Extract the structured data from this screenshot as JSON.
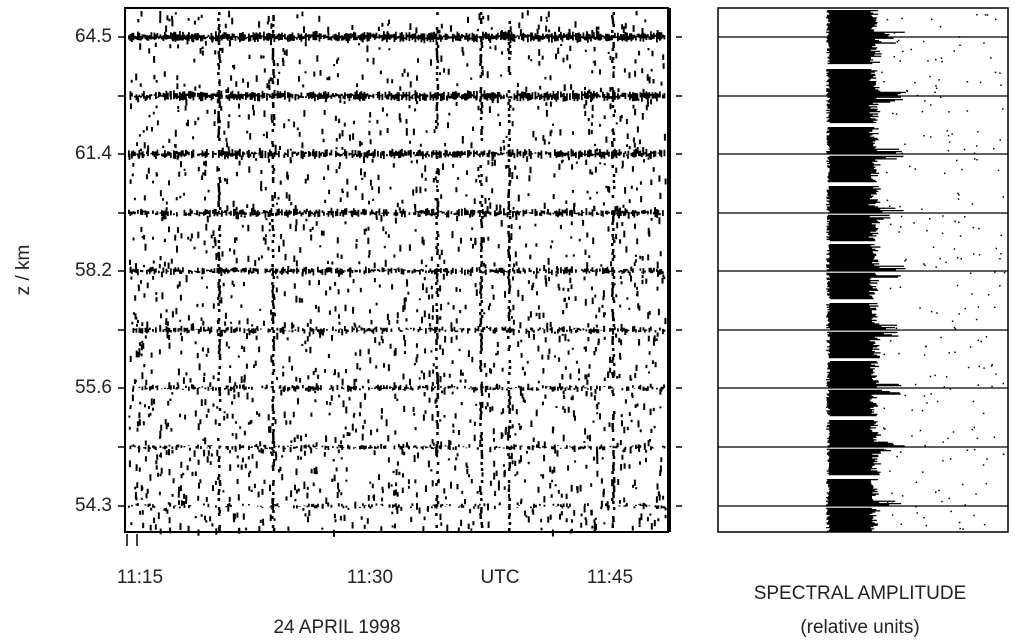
{
  "figure": {
    "left_panel": {
      "y_axis_label": "z / km",
      "y_tick_labels": [
        "64.5",
        "61.4",
        "58.2",
        "55.6",
        "54.3"
      ],
      "x_tick_labels": [
        "11:15",
        "11:30",
        "11:45"
      ],
      "x_unit": "UTC",
      "date": "24  APRIL 1998"
    },
    "right_panel": {
      "title": "SPECTRAL AMPLITUDE",
      "subtitle": "(relative units)"
    }
  }
}
